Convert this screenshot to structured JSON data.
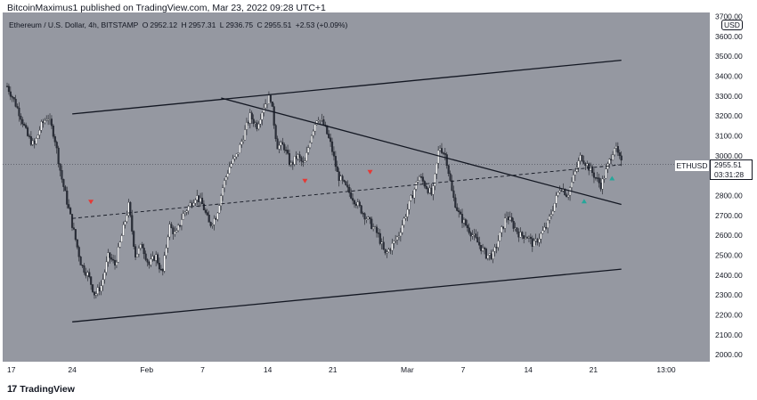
{
  "caption": "BitcoinMaximus1 published on TradingView.com, Mar 23, 2022 09:28 UTC+1",
  "symbol_header": {
    "title": "Ethereum / U.S. Dollar, 4h, BITSTAMP",
    "open_label": "O",
    "open": "2952.12",
    "high_label": "H",
    "high": "2957.31",
    "low_label": "L",
    "low": "2936.75",
    "close_label": "C",
    "close": "2955.51",
    "change": "+2.53 (+0.09%)"
  },
  "price_scale": {
    "currency": "USD",
    "ticks": [
      "3700.00",
      "3600.00",
      "3500.00",
      "3400.00",
      "3300.00",
      "3200.00",
      "3100.00",
      "3000.00",
      "2900.00",
      "2800.00",
      "2700.00",
      "2600.00",
      "2500.00",
      "2400.00",
      "2300.00",
      "2200.00",
      "2100.00",
      "2000.00"
    ]
  },
  "time_scale": {
    "ticks": [
      "17",
      "24",
      "Feb",
      "7",
      "14",
      "21",
      "Mar",
      "7",
      "14",
      "21",
      "13:00"
    ]
  },
  "last_price": {
    "symbol": "ETHUSD",
    "price": "2955.51",
    "countdown": "03:31:28"
  },
  "footer": {
    "logo": "17",
    "brand": "TradingView"
  },
  "colors": {
    "chart_bg": "#9598a1",
    "candle": "#ffffff",
    "trend_line": "#131722",
    "red_marker": "#e53935",
    "green_marker": "#26a69a"
  },
  "chart_data": {
    "type": "line",
    "ylim": [
      1965,
      3720
    ],
    "y_ticks": [
      3700,
      3600,
      3500,
      3400,
      3300,
      3200,
      3100,
      3000,
      2900,
      2800,
      2700,
      2600,
      2500,
      2400,
      2300,
      2200,
      2100,
      2000
    ],
    "x_ticks": [
      "17",
      "24",
      "Feb",
      "7",
      "14",
      "21",
      "Mar",
      "7",
      "14",
      "21",
      "13:00"
    ],
    "price_path": [
      3350,
      3280,
      3200,
      3100,
      3050,
      3150,
      3200,
      3100,
      2900,
      2750,
      2600,
      2450,
      2400,
      2300,
      2350,
      2500,
      2450,
      2600,
      2750,
      2500,
      2550,
      2450,
      2500,
      2400,
      2650,
      2600,
      2700,
      2750,
      2800,
      2750,
      2650,
      2700,
      2850,
      2950,
      3000,
      3100,
      3200,
      3150,
      3250,
      3300,
      3050,
      3050,
      2950,
      3000,
      2950,
      3100,
      3200,
      3150,
      3050,
      2900,
      2850,
      2800,
      2750,
      2700,
      2650,
      2600,
      2500,
      2550,
      2600,
      2700,
      2800,
      2900,
      2850,
      2800,
      3050,
      3000,
      2800,
      2700,
      2650,
      2600,
      2550,
      2500,
      2500,
      2600,
      2700,
      2650,
      2600,
      2600,
      2550,
      2600,
      2650,
      2750,
      2850,
      2800,
      2900,
      3000,
      2950,
      2900,
      2850,
      2950,
      3050,
      2960
    ],
    "trend_lines": [
      {
        "name": "upper channel",
        "from": [
          "Jan 24",
          3210
        ],
        "to": [
          "Mar 24",
          3480
        ]
      },
      {
        "name": "lower channel",
        "from": [
          "Jan 24",
          2165
        ],
        "to": [
          "Mar 24",
          2430
        ]
      },
      {
        "name": "descending resistance",
        "from": [
          "Feb 9",
          3290
        ],
        "to": [
          "Mar 24",
          2755
        ]
      },
      {
        "name": "dashed midline",
        "from": [
          "Jan 24",
          2685
        ],
        "to": [
          "Mar 24",
          2955
        ]
      }
    ],
    "markers": [
      {
        "color": "red",
        "x": "Jan 26",
        "y": 2770
      },
      {
        "color": "red",
        "x": "Feb 18",
        "y": 2875
      },
      {
        "color": "red",
        "x": "Feb 25",
        "y": 2920
      },
      {
        "color": "green",
        "x": "Mar 20",
        "y": 2770
      },
      {
        "color": "green",
        "x": "Mar 23",
        "y": 2885
      }
    ]
  }
}
